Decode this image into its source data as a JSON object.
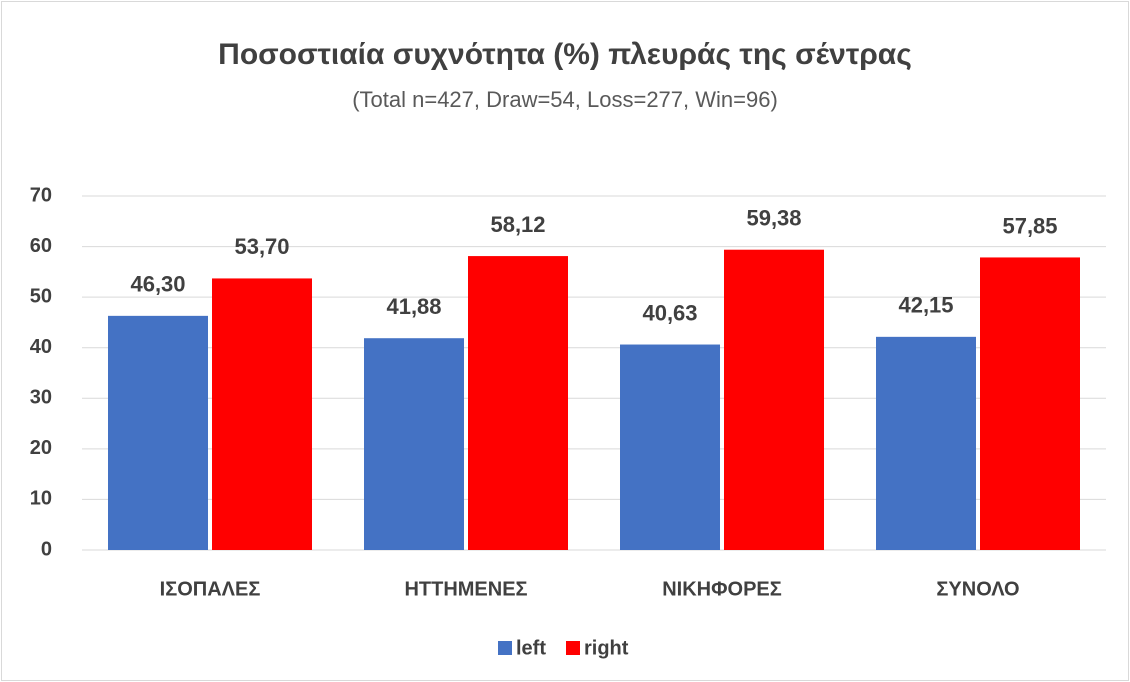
{
  "chart_data": {
    "type": "bar",
    "title": "Ποσοστιαία συχνότητα (%) πλευράς της σέντρας",
    "subtitle": "(Total n=427, Draw=54, Loss=277, Win=96)",
    "categories": [
      "ΙΣΟΠΑΛΕΣ",
      "ΗΤΤΗΜΕΝΕΣ",
      "ΝΙΚΗΦΟΡΕΣ",
      "ΣΥΝΟΛΟ"
    ],
    "series": [
      {
        "name": "left",
        "color": "#4472c4",
        "values": [
          46.3,
          41.88,
          40.63,
          42.15
        ],
        "value_labels": [
          "46,30",
          "41,88",
          "40,63",
          "42,15"
        ]
      },
      {
        "name": "right",
        "color": "#ff0000",
        "values": [
          53.7,
          58.12,
          59.38,
          57.85
        ],
        "value_labels": [
          "53,70",
          "58,12",
          "59,38",
          "57,85"
        ]
      }
    ],
    "ylim": [
      0,
      70
    ],
    "yticks": [
      0,
      10,
      20,
      30,
      40,
      50,
      60,
      70
    ],
    "grid": true,
    "legend": "bottom"
  }
}
